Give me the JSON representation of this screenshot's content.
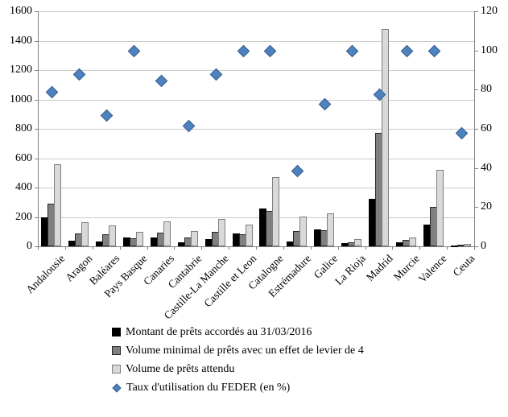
{
  "chart_data": {
    "type": "bar",
    "title": "",
    "categories": [
      "Andalousie",
      "Aragon",
      "Baléares",
      "Pays Basque",
      "Canaries",
      "Cantabrie",
      "Castille-La Manche",
      "Castille et Leon",
      "Catalogne",
      "Estrémadure",
      "Galice",
      "La Rioja",
      "Madrid",
      "Murcie",
      "Valence",
      "Ceuta"
    ],
    "series": [
      {
        "name": "Montant de prêts accordés au 31/03/2016",
        "plot": "bar",
        "axis": "left",
        "color": "#000000",
        "border_color": "#000000",
        "values": [
          195,
          40,
          35,
          60,
          60,
          30,
          50,
          90,
          255,
          35,
          115,
          20,
          325,
          30,
          150,
          5
        ]
      },
      {
        "name": "Volume minimal de prêts avec un effet de levier de 4",
        "plot": "bar",
        "axis": "left",
        "color": "#808080",
        "border_color": "#262626",
        "values": [
          290,
          90,
          80,
          55,
          95,
          60,
          100,
          80,
          240,
          105,
          110,
          30,
          775,
          45,
          270,
          10
        ]
      },
      {
        "name": "Volume de prêts attendu",
        "plot": "bar",
        "axis": "left",
        "color": "#d9d9d9",
        "border_color": "#7f7f7f",
        "values": [
          560,
          165,
          140,
          100,
          170,
          105,
          185,
          150,
          470,
          200,
          225,
          50,
          1480,
          60,
          520,
          15
        ]
      },
      {
        "name": "Taux d'utilisation du FEDER (en %)",
        "plot": "scatter",
        "marker": "diamond",
        "axis": "right",
        "color": "#4f81bd",
        "border_color": "#376092",
        "values": [
          79,
          88,
          67,
          100,
          85,
          62,
          88,
          100,
          100,
          39,
          73,
          100,
          78,
          100,
          100,
          58
        ]
      }
    ],
    "left_axis": {
      "min": 0,
      "max": 1600,
      "step": 200,
      "ticks": [
        "0",
        "200",
        "400",
        "600",
        "800",
        "1000",
        "1200",
        "1400",
        "1600"
      ]
    },
    "right_axis": {
      "min": 0,
      "max": 120,
      "step": 20,
      "ticks": [
        "0",
        "20",
        "40",
        "60",
        "80",
        "100",
        "120"
      ]
    },
    "grid": true,
    "legend_position": "bottom-left",
    "colors": {
      "gridline": "#c9c9c9",
      "axis": "#7f7f7f",
      "text": "#000000",
      "background": "#ffffff"
    }
  }
}
